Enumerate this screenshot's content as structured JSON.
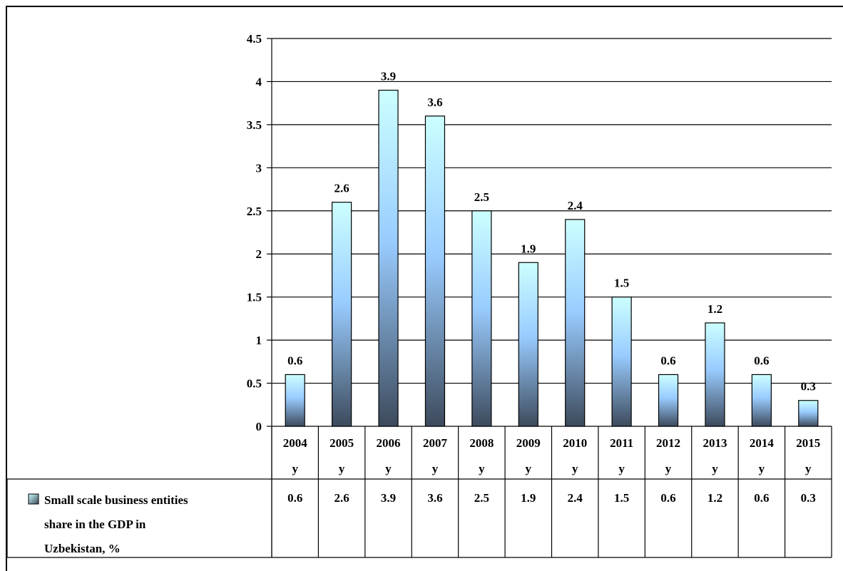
{
  "chart_data": {
    "type": "bar",
    "categories": [
      [
        "2004",
        "y"
      ],
      [
        "2005",
        "y"
      ],
      [
        "2006",
        "y"
      ],
      [
        "2007",
        "y"
      ],
      [
        "2008",
        "y"
      ],
      [
        "2009",
        "y"
      ],
      [
        "2010",
        "y"
      ],
      [
        "2011",
        "y"
      ],
      [
        "2012",
        "y"
      ],
      [
        "2013",
        "y"
      ],
      [
        "2014",
        "y"
      ],
      [
        "2015",
        "y"
      ]
    ],
    "series": [
      {
        "name": "Small scale business entities share in the GDP in Uzbekistan, %",
        "legend_lines": [
          "Small scale business entities",
          "share in the GDP in",
          "Uzbekistan, %"
        ],
        "values": [
          0.6,
          2.6,
          3.9,
          3.6,
          2.5,
          1.9,
          2.4,
          1.5,
          0.6,
          1.2,
          0.6,
          0.3
        ],
        "value_labels": [
          "0.6",
          "2.6",
          "3.9",
          "3.6",
          "2.5",
          "1.9",
          "2.4",
          "1.5",
          "0.6",
          "1.2",
          "0.6",
          "0.3"
        ]
      }
    ],
    "yticks": [
      "0",
      "0.5",
      "1",
      "1.5",
      "2",
      "2.5",
      "3",
      "3.5",
      "4",
      "4.5"
    ],
    "ylim": [
      0,
      4.5
    ],
    "grid": true,
    "legend_placement": "data-table-left",
    "colors": {
      "bar_top": "#ccffff",
      "bar_mid": "#99ccff",
      "bar_bottom": "#3d4a5c",
      "gridline": "#000000"
    }
  }
}
